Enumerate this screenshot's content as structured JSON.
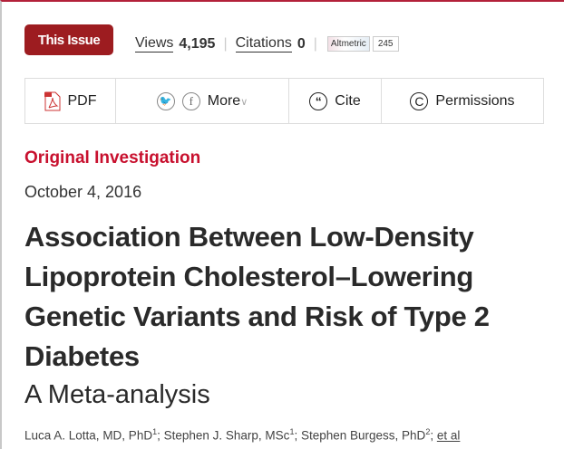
{
  "header": {
    "issue_button": "This Issue",
    "views_label": "Views",
    "views_count": "4,195",
    "citations_label": "Citations",
    "citations_count": "0",
    "altmetric_label": "Altmetric",
    "altmetric_score": "245"
  },
  "toolbar": {
    "pdf": "PDF",
    "more": "More",
    "cite": "Cite",
    "permissions": "Permissions"
  },
  "article": {
    "type": "Original Investigation",
    "date": "October 4, 2016",
    "title": "Association Between Low-Density Lipoprotein Cholesterol–Lowering Genetic Variants and Risk of Type 2 Diabetes",
    "subtitle": "A Meta-analysis",
    "authors": [
      {
        "name": "Luca A. Lotta, MD, PhD",
        "aff": "1"
      },
      {
        "name": "Stephen J. Sharp, MSc",
        "aff": "1"
      },
      {
        "name": "Stephen Burgess, PhD",
        "aff": "2"
      }
    ],
    "et_al": "et al"
  },
  "colors": {
    "accent": "#c8102e",
    "button": "#9d1c20"
  }
}
